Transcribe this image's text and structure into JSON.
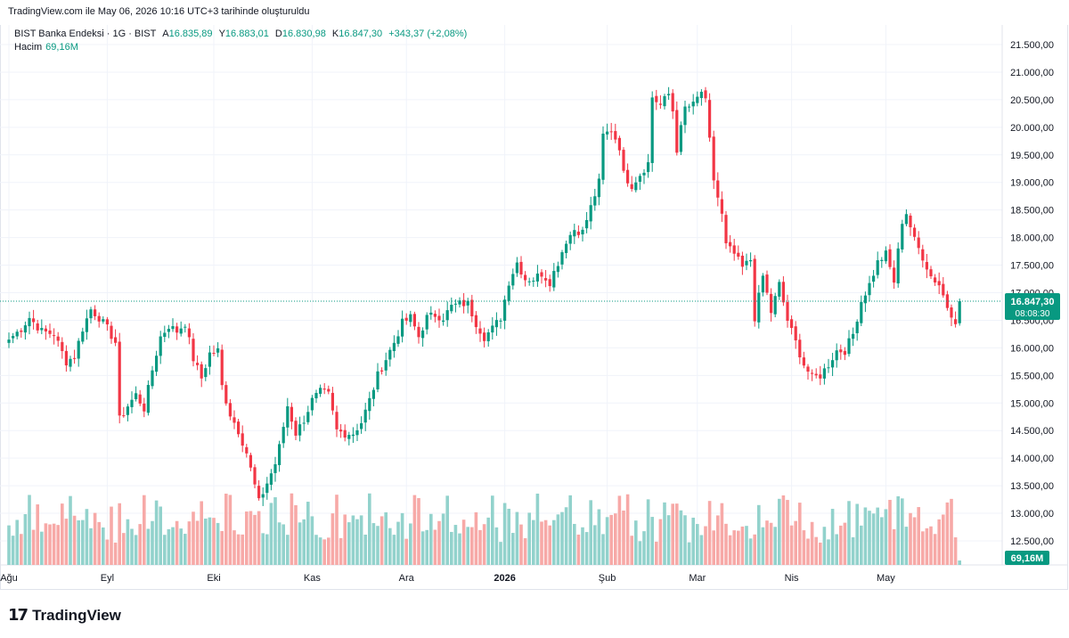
{
  "header": {
    "caption": "TradingView.com ile May 06, 2026 10:16 UTC+3 tarihinde oluşturuldu"
  },
  "legend": {
    "symbol": "BIST Banka Endeksi · 1G · BIST",
    "open_label": "A",
    "open": "16.835,89",
    "high_label": "Y",
    "high": "16.883,01",
    "low_label": "D",
    "low": "16.830,98",
    "close_label": "K",
    "close": "16.847,30",
    "change": "+343,37 (+2,08%)",
    "volume_label": "Hacim",
    "volume": "69,16M"
  },
  "price_badge": {
    "price": "16.847,30",
    "countdown": "08:08:30"
  },
  "volume_badge": "69,16M",
  "logo": {
    "text": "TradingView"
  },
  "colors": {
    "up": "#089981",
    "down": "#f23645",
    "up_vol": "#92d2cc",
    "down_vol": "#f7a9a7",
    "grid": "#f0f3fa"
  },
  "chart_data": {
    "type": "candlestick",
    "y_ticks": [
      "21.500,00",
      "21.000,00",
      "20.500,00",
      "20.000,00",
      "19.500,00",
      "19.000,00",
      "18.500,00",
      "18.000,00",
      "17.500,00",
      "17.000,00",
      "16.500,00",
      "16.000,00",
      "15.500,00",
      "15.000,00",
      "14.500,00",
      "14.000,00",
      "13.500,00",
      "13.000,00",
      "12.500,00"
    ],
    "y_range": [
      12500,
      21500
    ],
    "x_ticks": [
      "Ağu",
      "Eyl",
      "Eki",
      "Kas",
      "Ara",
      "2026",
      "Şub",
      "Mar",
      "Nis",
      "May"
    ],
    "x_tick_bars": [
      0,
      24,
      50,
      74,
      97,
      121,
      146,
      168,
      191,
      214
    ],
    "last_close": 16847.3,
    "candles_keypoints": [
      [
        0,
        16150
      ],
      [
        3,
        16350
      ],
      [
        5,
        16550
      ],
      [
        8,
        16300
      ],
      [
        11,
        16250
      ],
      [
        14,
        15750
      ],
      [
        16,
        15850
      ],
      [
        18,
        16350
      ],
      [
        20,
        16700
      ],
      [
        22,
        16550
      ],
      [
        24,
        16350
      ],
      [
        26,
        16100
      ],
      [
        27,
        14700
      ],
      [
        29,
        14950
      ],
      [
        31,
        15150
      ],
      [
        33,
        14900
      ],
      [
        35,
        15600
      ],
      [
        37,
        16200
      ],
      [
        39,
        16400
      ],
      [
        41,
        16300
      ],
      [
        43,
        16450
      ],
      [
        45,
        15800
      ],
      [
        47,
        15450
      ],
      [
        49,
        15900
      ],
      [
        51,
        15950
      ],
      [
        52,
        15300
      ],
      [
        54,
        14800
      ],
      [
        56,
        14500
      ],
      [
        58,
        14100
      ],
      [
        60,
        13500
      ],
      [
        61,
        13200
      ],
      [
        63,
        13550
      ],
      [
        65,
        13900
      ],
      [
        66,
        14200
      ],
      [
        68,
        14950
      ],
      [
        70,
        14450
      ],
      [
        72,
        14700
      ],
      [
        74,
        15050
      ],
      [
        76,
        15200
      ],
      [
        78,
        15150
      ],
      [
        80,
        14500
      ],
      [
        82,
        14450
      ],
      [
        84,
        14450
      ],
      [
        86,
        14650
      ],
      [
        88,
        15050
      ],
      [
        90,
        15500
      ],
      [
        92,
        15800
      ],
      [
        94,
        16100
      ],
      [
        96,
        16450
      ],
      [
        98,
        16550
      ],
      [
        100,
        16200
      ],
      [
        102,
        16550
      ],
      [
        104,
        16600
      ],
      [
        106,
        16550
      ],
      [
        108,
        16750
      ],
      [
        110,
        16800
      ],
      [
        112,
        16800
      ],
      [
        114,
        16450
      ],
      [
        116,
        16200
      ],
      [
        118,
        16350
      ],
      [
        120,
        16550
      ],
      [
        122,
        17200
      ],
      [
        124,
        17550
      ],
      [
        126,
        17250
      ],
      [
        128,
        17250
      ],
      [
        130,
        17350
      ],
      [
        132,
        17200
      ],
      [
        134,
        17550
      ],
      [
        136,
        17950
      ],
      [
        138,
        18150
      ],
      [
        140,
        18100
      ],
      [
        142,
        18550
      ],
      [
        144,
        19000
      ],
      [
        145,
        19850
      ],
      [
        147,
        19950
      ],
      [
        149,
        19650
      ],
      [
        150,
        19150
      ],
      [
        152,
        18950
      ],
      [
        154,
        19150
      ],
      [
        156,
        19350
      ],
      [
        157,
        20550
      ],
      [
        159,
        20400
      ],
      [
        161,
        20600
      ],
      [
        162,
        20300
      ],
      [
        163,
        19600
      ],
      [
        165,
        20350
      ],
      [
        167,
        20400
      ],
      [
        169,
        20650
      ],
      [
        170,
        20450
      ],
      [
        172,
        19050
      ],
      [
        174,
        18400
      ],
      [
        175,
        17850
      ],
      [
        177,
        17700
      ],
      [
        179,
        17450
      ],
      [
        181,
        17600
      ],
      [
        182,
        16550
      ],
      [
        184,
        17300
      ],
      [
        186,
        16650
      ],
      [
        188,
        17150
      ],
      [
        190,
        16500
      ],
      [
        192,
        16100
      ],
      [
        194,
        15700
      ],
      [
        196,
        15450
      ],
      [
        198,
        15500
      ],
      [
        200,
        15700
      ],
      [
        202,
        15950
      ],
      [
        204,
        15950
      ],
      [
        206,
        16250
      ],
      [
        208,
        16850
      ],
      [
        210,
        17150
      ],
      [
        212,
        17550
      ],
      [
        214,
        17700
      ],
      [
        216,
        17200
      ],
      [
        218,
        18300
      ],
      [
        219,
        18450
      ],
      [
        221,
        17950
      ],
      [
        223,
        17650
      ],
      [
        225,
        17300
      ],
      [
        227,
        17150
      ],
      [
        229,
        16750
      ],
      [
        231,
        16500
      ],
      [
        232,
        16847
      ]
    ]
  }
}
